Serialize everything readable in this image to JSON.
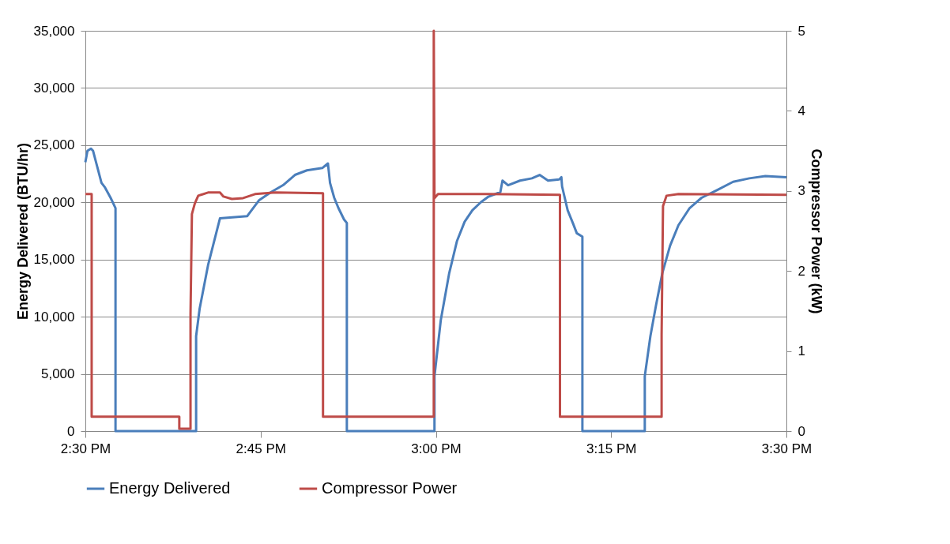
{
  "chart_data": {
    "type": "line",
    "xlabel": null,
    "ylabel": "Energy Delivered (BTU/hr)",
    "y2label": "Compressor Power (kW)",
    "x": [
      14.5,
      14.503,
      14.508,
      14.511,
      14.517,
      14.523,
      14.528,
      14.536,
      14.543,
      14.543,
      14.658,
      14.658,
      14.663,
      14.669,
      14.675,
      14.692,
      14.731,
      14.737,
      14.748,
      14.765,
      14.782,
      14.799,
      14.816,
      14.838,
      14.844,
      14.846,
      14.849,
      14.855,
      14.861,
      14.869,
      14.873,
      14.873,
      14.998,
      14.998,
      15.007,
      15.019,
      15.03,
      15.041,
      15.052,
      15.064,
      15.075,
      15.092,
      15.095,
      15.103,
      15.12,
      15.137,
      15.148,
      15.16,
      15.176,
      15.179,
      15.18,
      15.188,
      15.196,
      15.201,
      15.209,
      15.209,
      15.298,
      15.298,
      15.306,
      15.314,
      15.323,
      15.334,
      15.346,
      15.362,
      15.379,
      15.402,
      15.424,
      15.447,
      15.47,
      15.5
    ],
    "series": [
      {
        "name": "Energy Delivered",
        "color": "#4a7ebb",
        "values": [
          23500,
          24500,
          24700,
          24500,
          23100,
          21700,
          21300,
          20400,
          19500,
          0,
          0,
          8300,
          10700,
          12600,
          14500,
          18600,
          18800,
          19300,
          20200,
          20900,
          21500,
          22400,
          22800,
          23000,
          23300,
          23400,
          21700,
          20400,
          19500,
          18500,
          18200,
          0,
          0,
          4800,
          9700,
          13800,
          16600,
          18300,
          19300,
          20000,
          20500,
          20900,
          21900,
          21500,
          21900,
          22100,
          22400,
          21900,
          22000,
          22200,
          21400,
          19300,
          18100,
          17300,
          17000,
          0,
          0,
          4800,
          8300,
          11000,
          13800,
          16200,
          18000,
          19500,
          20400,
          21100,
          21800,
          22100,
          22300,
          22200
        ]
      },
      {
        "name": "Compressor Power",
        "color": "#be4b48",
        "axis": "y2",
        "x": [
          14.5,
          14.509,
          14.509,
          14.634,
          14.634,
          14.65,
          14.65,
          14.652,
          14.656,
          14.661,
          14.675,
          14.692,
          14.697,
          14.709,
          14.725,
          14.742,
          14.771,
          14.839,
          14.839,
          14.997,
          14.997,
          14.998,
          15.003,
          15.075,
          15.177,
          15.177,
          15.322,
          15.322,
          15.324,
          15.329,
          15.346,
          15.5
        ],
        "values": [
          2.96,
          2.96,
          0.18,
          0.18,
          0.03,
          0.03,
          1.46,
          2.71,
          2.84,
          2.94,
          2.98,
          2.98,
          2.93,
          2.9,
          2.91,
          2.96,
          2.98,
          2.97,
          0.18,
          0.18,
          5,
          2.91,
          2.96,
          2.96,
          2.95,
          0.18,
          0.18,
          1.2,
          2.81,
          2.94,
          2.96,
          2.95
        ]
      }
    ],
    "xlim": [
      14.5,
      15.5
    ],
    "xticks": [
      {
        "value": 14.5,
        "label": "2:30 PM"
      },
      {
        "value": 14.75,
        "label": "2:45 PM"
      },
      {
        "value": 15,
        "label": "3:00 PM"
      },
      {
        "value": 15.25,
        "label": "3:15 PM"
      },
      {
        "value": 15.5,
        "label": "3:30 PM"
      }
    ],
    "ylim": [
      0,
      35000
    ],
    "yticks": [
      0,
      {
        "value": 5000,
        "label": "5,000"
      },
      {
        "value": 10000,
        "label": "10,000"
      },
      {
        "value": 15000,
        "label": "15,000"
      },
      {
        "value": 20000,
        "label": "20,000"
      },
      {
        "value": 25000,
        "label": "25,000"
      },
      {
        "value": 30000,
        "label": "30,000"
      },
      {
        "value": 35000,
        "label": "35,000"
      }
    ],
    "y2lim": [
      0,
      5
    ],
    "y2ticks": [
      0,
      1,
      2,
      3,
      4,
      5
    ],
    "grid": "y",
    "legend": "bottom",
    "marker": "none",
    "line_style": "solid"
  }
}
